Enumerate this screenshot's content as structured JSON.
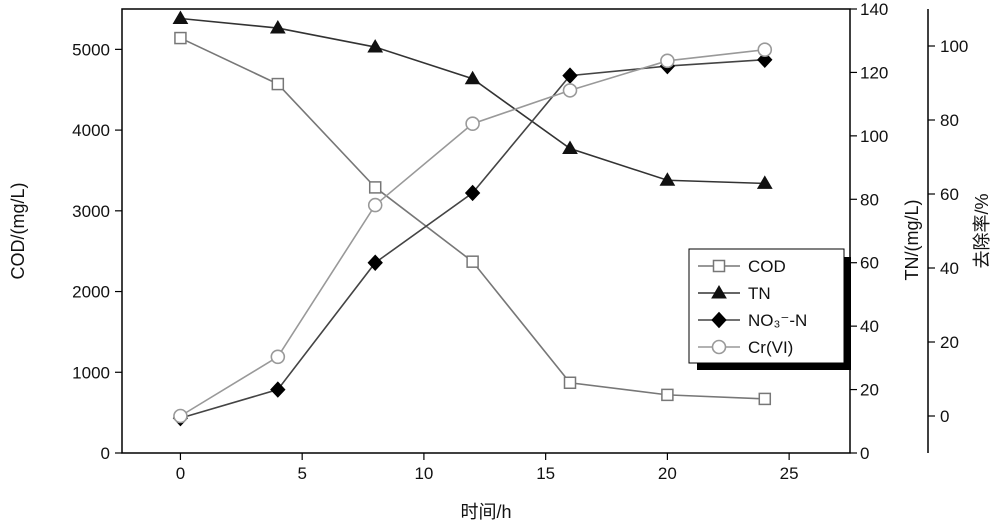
{
  "chart_data": {
    "type": "line",
    "xlabel": "时间/h",
    "x_ticks": [
      0,
      5,
      10,
      15,
      20,
      25
    ],
    "xlim": [
      -2.4,
      27.5
    ],
    "axes": {
      "cod": {
        "label": "COD/(mg/L)",
        "ylim": [
          0,
          5500
        ],
        "ticks": [
          0,
          1000,
          2000,
          3000,
          4000,
          5000
        ]
      },
      "tn": {
        "label": "TN/(mg/L)",
        "ylim": [
          0,
          140
        ],
        "ticks": [
          0,
          20,
          40,
          60,
          80,
          100,
          120,
          140
        ]
      },
      "removal": {
        "label": "去除率/%",
        "ylim": [
          -10,
          110
        ],
        "ticks": [
          0,
          20,
          40,
          60,
          80,
          100
        ]
      }
    },
    "x": [
      0,
      4,
      8,
      12,
      16,
      20,
      24
    ],
    "series": [
      {
        "name": "COD",
        "axis": "cod",
        "marker": "open-square",
        "color": "#777777",
        "values": [
          5140,
          4570,
          3290,
          2370,
          870,
          720,
          670
        ]
      },
      {
        "name": "TN",
        "axis": "tn",
        "marker": "filled-triangle",
        "color": "#333333",
        "values": [
          137,
          134,
          128,
          118,
          96,
          86,
          85
        ]
      },
      {
        "name": "NO₃⁻-N",
        "axis": "tn",
        "marker": "filled-diamond",
        "color": "#444444",
        "values": [
          11,
          20,
          60,
          82,
          119,
          122,
          124
        ]
      },
      {
        "name": "Cr(VI)",
        "axis": "removal",
        "marker": "open-circle",
        "color": "#999999",
        "values": [
          0,
          16,
          57,
          79,
          88,
          96,
          99
        ]
      }
    ],
    "legend": {
      "position": "right-middle",
      "entries": [
        "COD",
        "TN",
        "NO₃⁻-N",
        "Cr(VI)"
      ]
    },
    "grid": false
  }
}
